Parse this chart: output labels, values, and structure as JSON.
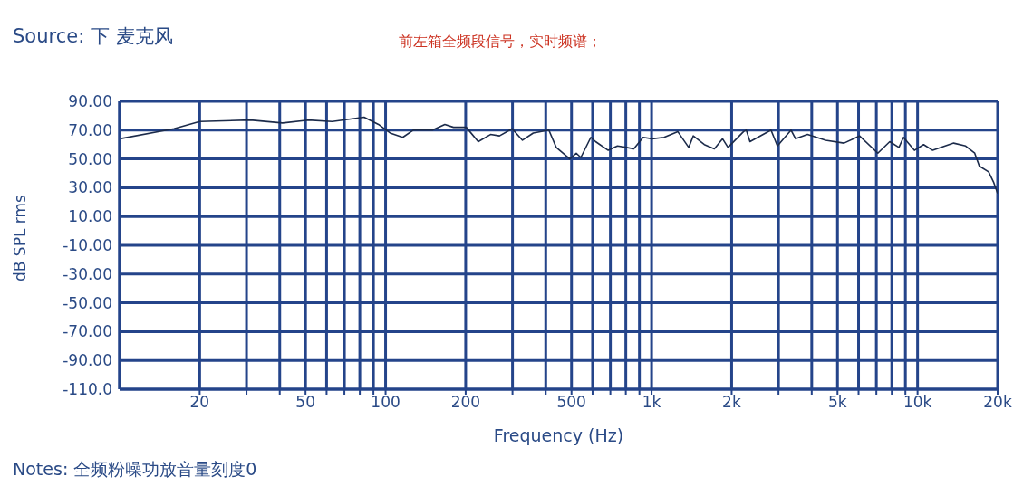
{
  "chart_data": {
    "type": "line",
    "title": "Source: 下 麦克风",
    "subtitle": "前左箱全频段信号，实时频谱；",
    "xlabel": "Frequency (Hz)",
    "ylabel": "dB SPL rms",
    "annotations": [
      "Notes: 全频粉噪功放音量刻度0"
    ],
    "log": "x",
    "grid": true,
    "xlim": [
      10,
      20000
    ],
    "xticks": [
      {
        "value": 20,
        "label": "20"
      },
      {
        "value": 30,
        "label": null
      },
      {
        "value": 40,
        "label": null
      },
      {
        "value": 50,
        "label": "50"
      },
      {
        "value": 60,
        "label": null
      },
      {
        "value": 70,
        "label": null
      },
      {
        "value": 80,
        "label": null
      },
      {
        "value": 90,
        "label": null
      },
      {
        "value": 100,
        "label": "100"
      },
      {
        "value": 200,
        "label": "200"
      },
      {
        "value": 300,
        "label": null
      },
      {
        "value": 400,
        "label": null
      },
      {
        "value": 500,
        "label": "500"
      },
      {
        "value": 600,
        "label": null
      },
      {
        "value": 700,
        "label": null
      },
      {
        "value": 800,
        "label": null
      },
      {
        "value": 900,
        "label": null
      },
      {
        "value": 1000,
        "label": "1k"
      },
      {
        "value": 2000,
        "label": "2k"
      },
      {
        "value": 3000,
        "label": null
      },
      {
        "value": 4000,
        "label": null
      },
      {
        "value": 5000,
        "label": "5k"
      },
      {
        "value": 6000,
        "label": null
      },
      {
        "value": 7000,
        "label": null
      },
      {
        "value": 8000,
        "label": null
      },
      {
        "value": 9000,
        "label": null
      },
      {
        "value": 10000,
        "label": "10k"
      },
      {
        "value": 20000,
        "label": "20k"
      }
    ],
    "ylim": [
      -110,
      90
    ],
    "yticks": [
      {
        "value": 90,
        "label": "90.00"
      },
      {
        "value": 70,
        "label": "70.00"
      },
      {
        "value": 50,
        "label": "50.00"
      },
      {
        "value": 30,
        "label": "30.00"
      },
      {
        "value": 10,
        "label": "10.00"
      },
      {
        "value": -10,
        "label": "-10.00"
      },
      {
        "value": -30,
        "label": "-30.00"
      },
      {
        "value": -50,
        "label": "-50.00"
      },
      {
        "value": -70,
        "label": "-70.00"
      },
      {
        "value": -90,
        "label": "-90.00"
      },
      {
        "value": -110,
        "label": "-110.0"
      }
    ],
    "series": [
      {
        "color": "#1c2b4a",
        "x": [
          10,
          16,
          20,
          31,
          41,
          51,
          63,
          83,
          94,
          104,
          116,
          127,
          150,
          167,
          180,
          201,
          223,
          248,
          268,
          299,
          327,
          359,
          411,
          438,
          493,
          521,
          542,
          591,
          616,
          687,
          744,
          805,
          857,
          929,
          1005,
          1114,
          1254,
          1379,
          1435,
          1578,
          1722,
          1849,
          1938,
          2218,
          2270,
          2344,
          2812,
          2972,
          3345,
          3479,
          3855,
          4515,
          5290,
          6050,
          7090,
          7860,
          8510,
          8850,
          9730,
          10540,
          11400,
          13670,
          15160,
          16400,
          17070,
          18500,
          19300,
          20000
        ],
        "values": [
          64,
          71,
          76,
          77,
          75,
          77,
          76,
          79,
          74,
          68,
          65,
          70,
          70,
          74,
          72,
          72,
          62,
          67,
          66,
          71,
          63,
          68,
          70,
          58,
          50,
          54,
          51,
          65,
          62,
          56,
          59,
          58,
          57,
          65,
          64,
          65,
          69,
          58,
          66,
          60,
          57,
          64,
          58,
          69,
          70,
          62,
          70,
          59,
          70,
          64,
          67,
          63,
          61,
          66,
          54,
          62,
          58,
          65,
          56,
          60,
          56,
          61,
          59,
          54,
          45,
          41,
          34,
          26
        ]
      }
    ]
  }
}
